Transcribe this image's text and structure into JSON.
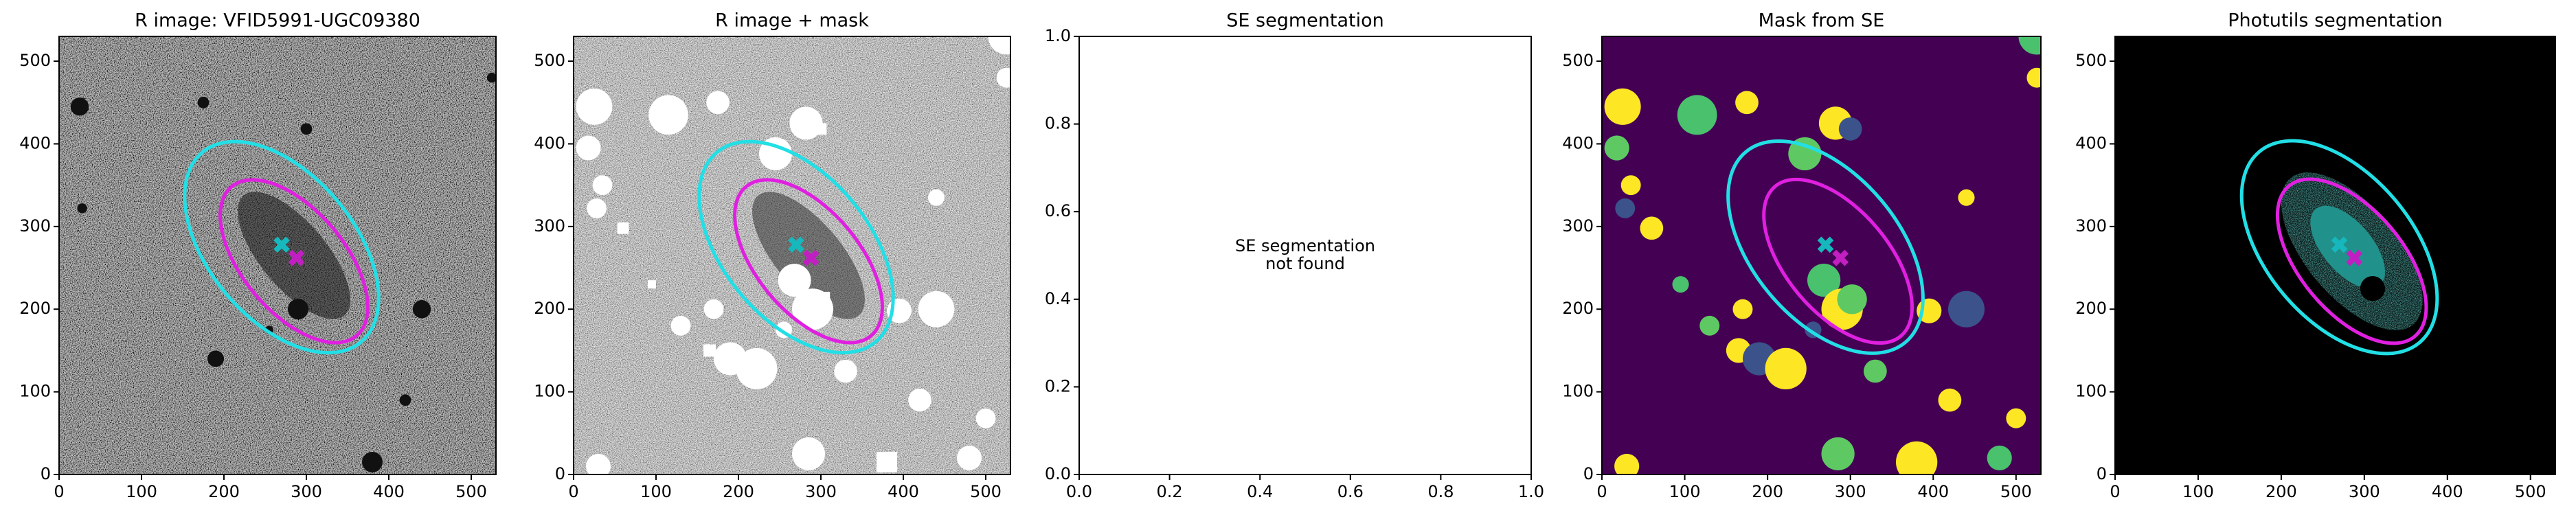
{
  "charts": [
    {
      "type": "image",
      "title": "R image: VFID5991-UGC09380",
      "xlim": [
        0,
        530
      ],
      "ylim": [
        0,
        530
      ],
      "xticks": [
        0,
        100,
        200,
        300,
        400,
        500
      ],
      "yticks": [
        0,
        100,
        200,
        300,
        400,
        500
      ]
    },
    {
      "type": "image",
      "title": "R image + mask",
      "xlim": [
        0,
        530
      ],
      "ylim": [
        0,
        530
      ],
      "xticks": [
        0,
        100,
        200,
        300,
        400,
        500
      ],
      "yticks": [
        0,
        100,
        200,
        300,
        400,
        500
      ]
    },
    {
      "type": "annotation",
      "title": "SE segmentation",
      "annotation": [
        "SE segmentation",
        "not found"
      ],
      "xlim": [
        0,
        1
      ],
      "ylim": [
        0,
        1
      ],
      "xticks": [
        {
          "value": 0,
          "label": "0.0"
        },
        {
          "value": 0.2,
          "label": "0.2"
        },
        {
          "value": 0.4,
          "label": "0.4"
        },
        {
          "value": 0.6,
          "label": "0.6"
        },
        {
          "value": 0.8,
          "label": "0.8"
        },
        {
          "value": 1,
          "label": "1.0"
        }
      ],
      "yticks": [
        {
          "value": 0,
          "label": "0.0"
        },
        {
          "value": 0.2,
          "label": "0.2"
        },
        {
          "value": 0.4,
          "label": "0.4"
        },
        {
          "value": 0.6,
          "label": "0.6"
        },
        {
          "value": 0.8,
          "label": "0.8"
        },
        {
          "value": 1,
          "label": "1.0"
        }
      ]
    },
    {
      "type": "image",
      "title": "Mask from SE",
      "xlim": [
        0,
        530
      ],
      "ylim": [
        0,
        530
      ],
      "xticks": [
        0,
        100,
        200,
        300,
        400,
        500
      ],
      "yticks": [
        0,
        100,
        200,
        300,
        400,
        500
      ]
    },
    {
      "type": "image",
      "title": "Photutils segmentation",
      "xlim": [
        0,
        530
      ],
      "ylim": [
        0,
        530
      ],
      "xticks": [
        0,
        100,
        200,
        300,
        400,
        500
      ],
      "yticks": [
        0,
        100,
        200,
        300,
        400,
        500
      ]
    }
  ]
}
